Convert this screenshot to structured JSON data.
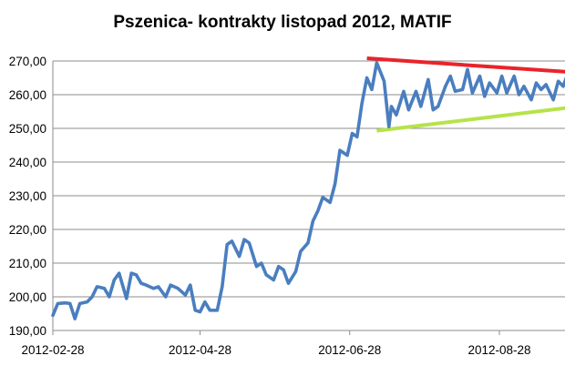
{
  "chart_data": {
    "type": "line",
    "title": "Pszenica- kontrakty listopad 2012, MATIF",
    "xlabel": "",
    "ylabel": "",
    "ylim": [
      190,
      270
    ],
    "y_ticks": [
      "190,00",
      "200,00",
      "210,00",
      "220,00",
      "230,00",
      "240,00",
      "250,00",
      "260,00",
      "270,00"
    ],
    "y_tick_values": [
      190,
      200,
      210,
      220,
      230,
      240,
      250,
      260,
      270
    ],
    "x_ticks": [
      "2012-02-28",
      "2012-04-28",
      "2012-06-28",
      "2012-08-28"
    ],
    "x_range": [
      "2012-02-28",
      "2012-09-26"
    ],
    "grid": "horizontal",
    "legend": "none",
    "series": [
      {
        "color": "#4a7ebf",
        "points": [
          [
            "2012-02-28",
            194.5
          ],
          [
            "2012-03-01",
            198.0
          ],
          [
            "2012-03-04",
            198.2
          ],
          [
            "2012-03-06",
            198.0
          ],
          [
            "2012-03-08",
            193.5
          ],
          [
            "2012-03-10",
            198.0
          ],
          [
            "2012-03-13",
            198.5
          ],
          [
            "2012-03-15",
            200.0
          ],
          [
            "2012-03-17",
            203.0
          ],
          [
            "2012-03-20",
            202.5
          ],
          [
            "2012-03-22",
            200.0
          ],
          [
            "2012-03-24",
            205.0
          ],
          [
            "2012-03-26",
            207.0
          ],
          [
            "2012-03-29",
            199.5
          ],
          [
            "2012-03-31",
            207.0
          ],
          [
            "2012-04-02",
            206.5
          ],
          [
            "2012-04-04",
            204.0
          ],
          [
            "2012-04-06",
            203.5
          ],
          [
            "2012-04-09",
            202.5
          ],
          [
            "2012-04-11",
            203.0
          ],
          [
            "2012-04-14",
            200.0
          ],
          [
            "2012-04-16",
            203.5
          ],
          [
            "2012-04-19",
            202.5
          ],
          [
            "2012-04-22",
            200.5
          ],
          [
            "2012-04-24",
            203.5
          ],
          [
            "2012-04-26",
            196.0
          ],
          [
            "2012-04-28",
            195.5
          ],
          [
            "2012-04-30",
            198.5
          ],
          [
            "2012-05-02",
            196.0
          ],
          [
            "2012-05-05",
            196.0
          ],
          [
            "2012-05-07",
            203.0
          ],
          [
            "2012-05-09",
            215.5
          ],
          [
            "2012-05-11",
            216.5
          ],
          [
            "2012-05-14",
            212.0
          ],
          [
            "2012-05-16",
            217.0
          ],
          [
            "2012-05-18",
            216.0
          ],
          [
            "2012-05-21",
            209.0
          ],
          [
            "2012-05-23",
            210.0
          ],
          [
            "2012-05-25",
            206.5
          ],
          [
            "2012-05-28",
            205.0
          ],
          [
            "2012-05-30",
            209.0
          ],
          [
            "2012-06-01",
            208.0
          ],
          [
            "2012-06-03",
            204.0
          ],
          [
            "2012-06-06",
            207.5
          ],
          [
            "2012-06-08",
            213.5
          ],
          [
            "2012-06-11",
            216.0
          ],
          [
            "2012-06-13",
            222.5
          ],
          [
            "2012-06-15",
            225.5
          ],
          [
            "2012-06-17",
            229.5
          ],
          [
            "2012-06-20",
            228.0
          ],
          [
            "2012-06-22",
            233.5
          ],
          [
            "2012-06-24",
            243.5
          ],
          [
            "2012-06-27",
            242.0
          ],
          [
            "2012-06-29",
            248.5
          ],
          [
            "2012-07-01",
            247.5
          ],
          [
            "2012-07-03",
            257.5
          ],
          [
            "2012-07-05",
            265.0
          ],
          [
            "2012-07-07",
            261.5
          ],
          [
            "2012-07-09",
            269.5
          ],
          [
            "2012-07-12",
            264.0
          ],
          [
            "2012-07-14",
            250.5
          ],
          [
            "2012-07-15",
            256.5
          ],
          [
            "2012-07-17",
            254.0
          ],
          [
            "2012-07-20",
            261.0
          ],
          [
            "2012-07-22",
            255.5
          ],
          [
            "2012-07-25",
            261.0
          ],
          [
            "2012-07-27",
            256.5
          ],
          [
            "2012-07-30",
            264.5
          ],
          [
            "2012-08-01",
            255.5
          ],
          [
            "2012-08-03",
            256.5
          ],
          [
            "2012-08-06",
            262.5
          ],
          [
            "2012-08-08",
            265.5
          ],
          [
            "2012-08-10",
            261.0
          ],
          [
            "2012-08-13",
            261.5
          ],
          [
            "2012-08-15",
            267.5
          ],
          [
            "2012-08-17",
            260.5
          ],
          [
            "2012-08-20",
            265.5
          ],
          [
            "2012-08-22",
            259.5
          ],
          [
            "2012-08-24",
            263.5
          ],
          [
            "2012-08-27",
            260.5
          ],
          [
            "2012-08-29",
            265.5
          ],
          [
            "2012-08-31",
            260.5
          ],
          [
            "2012-09-03",
            265.5
          ],
          [
            "2012-09-05",
            260.0
          ],
          [
            "2012-09-07",
            262.5
          ],
          [
            "2012-09-10",
            258.5
          ],
          [
            "2012-09-12",
            263.5
          ],
          [
            "2012-09-14",
            261.5
          ],
          [
            "2012-09-16",
            263.0
          ],
          [
            "2012-09-19",
            258.5
          ],
          [
            "2012-09-21",
            264.0
          ],
          [
            "2012-09-23",
            262.5
          ],
          [
            "2012-09-25",
            266.5
          ]
        ]
      }
    ],
    "trendlines": [
      {
        "color": "#e8242a",
        "points": [
          [
            "2012-07-05",
            270.8
          ],
          [
            "2012-09-26",
            266.7
          ]
        ]
      },
      {
        "color": "#b6e34a",
        "points": [
          [
            "2012-07-09",
            249.3
          ],
          [
            "2012-09-26",
            256.2
          ]
        ]
      }
    ]
  }
}
